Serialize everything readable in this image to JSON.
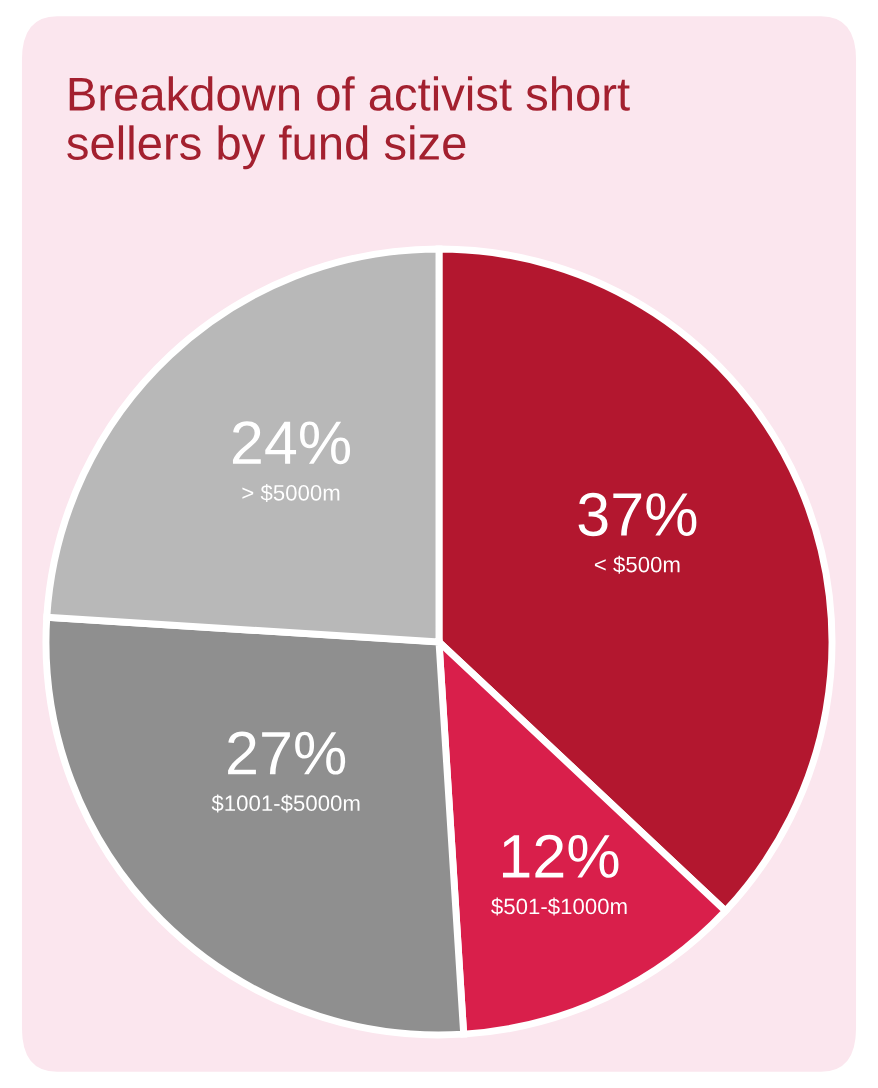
{
  "chart_data": {
    "type": "pie",
    "title": "Breakdown of activist short sellers by fund size",
    "categories": [
      "< $500m",
      "$501-$1000m",
      "$1001-$5000m",
      "> $5000m"
    ],
    "values": [
      37,
      12,
      27,
      24
    ],
    "value_labels": [
      "37%",
      "12%",
      "27%",
      "24%"
    ],
    "colors": [
      "#b3172f",
      "#d91f4b",
      "#8f8f8f",
      "#b8b8b8"
    ]
  }
}
